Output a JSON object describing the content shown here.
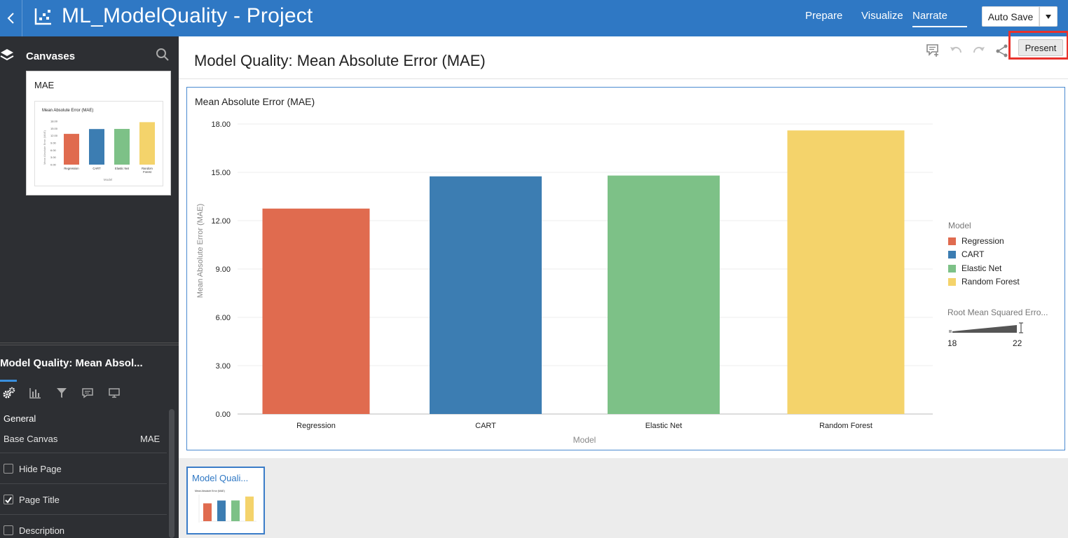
{
  "app": {
    "title": "ML_ModelQuality - Project",
    "nav_tabs": [
      {
        "label": "Prepare",
        "active": false
      },
      {
        "label": "Visualize",
        "active": false
      },
      {
        "label": "Narrate",
        "active": true
      }
    ],
    "autosave_label": "Auto Save"
  },
  "sidebar": {
    "title": "Canvases",
    "canvas_card": {
      "title": "MAE"
    },
    "thumbnail_chart": {
      "title": "Mean Absolute Error (MAE)",
      "ylabel": "Mean Absolute Error (MAE)",
      "xlabel": "Model",
      "ticks": [
        "18.00",
        "15.00",
        "12.00",
        "9.00",
        "6.00",
        "3.00",
        "0.00"
      ],
      "categories": [
        "Regression",
        "CART",
        "Elastic Net",
        "Random Forest"
      ]
    },
    "properties": {
      "title": "Model Quality: Mean Absol...",
      "section": "General",
      "base_canvas_label": "Base Canvas",
      "base_canvas_value": "MAE",
      "options": [
        {
          "label": "Hide Page",
          "checked": false
        },
        {
          "label": "Page Title",
          "checked": true
        },
        {
          "label": "Description",
          "checked": false
        }
      ]
    }
  },
  "main": {
    "page_title": "Model Quality: Mean Absolute Error (MAE)",
    "present_label": "Present",
    "viz_title": "Mean Absolute Error (MAE)",
    "page_thumb_label": "Model Quali..."
  },
  "legend": {
    "title": "Model",
    "items": [
      {
        "label": "Regression",
        "color": "#e06b4f"
      },
      {
        "label": "CART",
        "color": "#3c7db2"
      },
      {
        "label": "Elastic Net",
        "color": "#7dc187"
      },
      {
        "label": "Random Forest",
        "color": "#f4d36b"
      }
    ],
    "size_title": "Root Mean Squared Erro...",
    "size_min": "18",
    "size_max": "22"
  },
  "chart_data": {
    "type": "bar",
    "title": "Mean Absolute Error (MAE)",
    "xlabel": "Model",
    "ylabel": "Mean Absolute Error (MAE)",
    "categories": [
      "Regression",
      "CART",
      "Elastic Net",
      "Random Forest"
    ],
    "values": [
      12.75,
      14.75,
      14.8,
      17.6
    ],
    "colors": [
      "#e06b4f",
      "#3c7db2",
      "#7dc187",
      "#f4d36b"
    ],
    "ylim": [
      0,
      18
    ],
    "yticks": [
      0,
      3,
      6,
      9,
      12,
      15,
      18
    ],
    "ytick_labels": [
      "0.00",
      "3.00",
      "6.00",
      "9.00",
      "12.00",
      "15.00",
      "18.00"
    ],
    "grid": true,
    "legend_position": "right"
  }
}
